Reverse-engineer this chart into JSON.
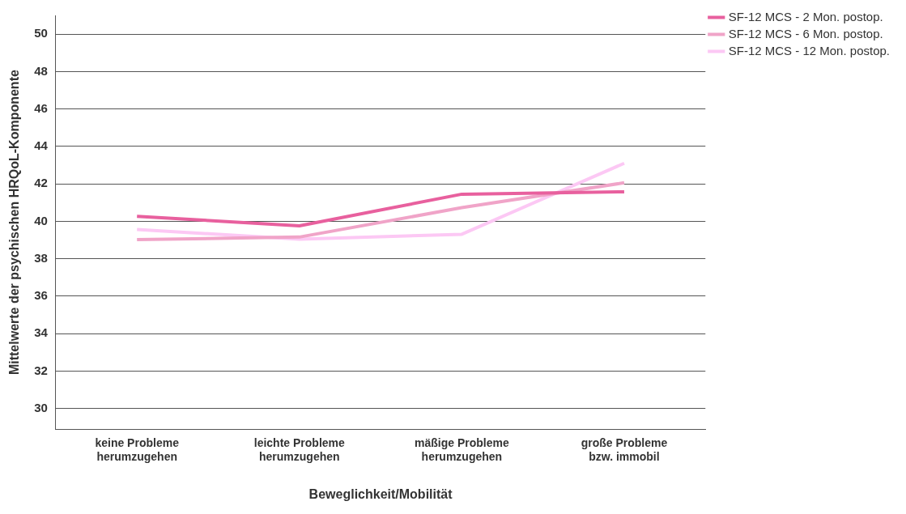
{
  "chart_data": {
    "type": "line",
    "xlabel": "Beweglichkeit/Mobilität",
    "ylabel": "Mittelwerte der psychischen HRQoL-Komponente",
    "categories": [
      "keine Probleme\nherumzugehen",
      "leichte Probleme\nherumzugehen",
      "mäßige Probleme\nherumzugehen",
      "große Probleme\nbzw. immobil"
    ],
    "series": [
      {
        "name": "SF-12 MCS - 2 Mon. postop.",
        "color": "#e8609e",
        "values": [
          40.27,
          39.76,
          41.45,
          41.58
        ]
      },
      {
        "name": "SF-12 MCS - 6 Mon. postop.",
        "color": "#f0a4c8",
        "values": [
          39.02,
          39.16,
          40.73,
          42.06
        ]
      },
      {
        "name": "SF-12 MCS - 12 Mon. postop.",
        "color": "#fcc8f4",
        "values": [
          39.56,
          39.05,
          39.31,
          43.1
        ]
      }
    ],
    "ylim": [
      28.9,
      51
    ],
    "yticks": [
      30,
      32,
      34,
      36,
      38,
      40,
      42,
      44,
      46,
      48,
      50
    ],
    "grid": "y",
    "legend": "top right",
    "marker": "none",
    "line_style": "solid"
  }
}
